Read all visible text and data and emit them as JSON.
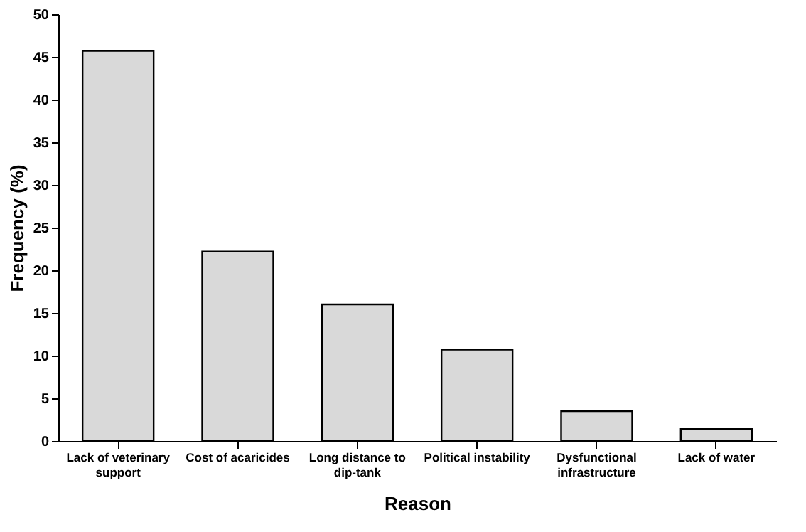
{
  "chart_data": {
    "type": "bar",
    "xlabel": "Reason",
    "ylabel": "Frequency (%)",
    "categories": [
      "Lack of veterinary support",
      "Cost of acaricides",
      "Long distance to dip-tank",
      "Political instability",
      "Dysfunctional infrastructure",
      "Lack of water"
    ],
    "values": [
      45.7,
      22.2,
      16.0,
      10.7,
      3.5,
      1.4
    ],
    "color": "#d9d9d9",
    "ylim": [
      0,
      50
    ],
    "yticks": [
      0,
      5,
      10,
      15,
      20,
      25,
      30,
      35,
      40,
      45,
      50
    ],
    "grid": false
  }
}
